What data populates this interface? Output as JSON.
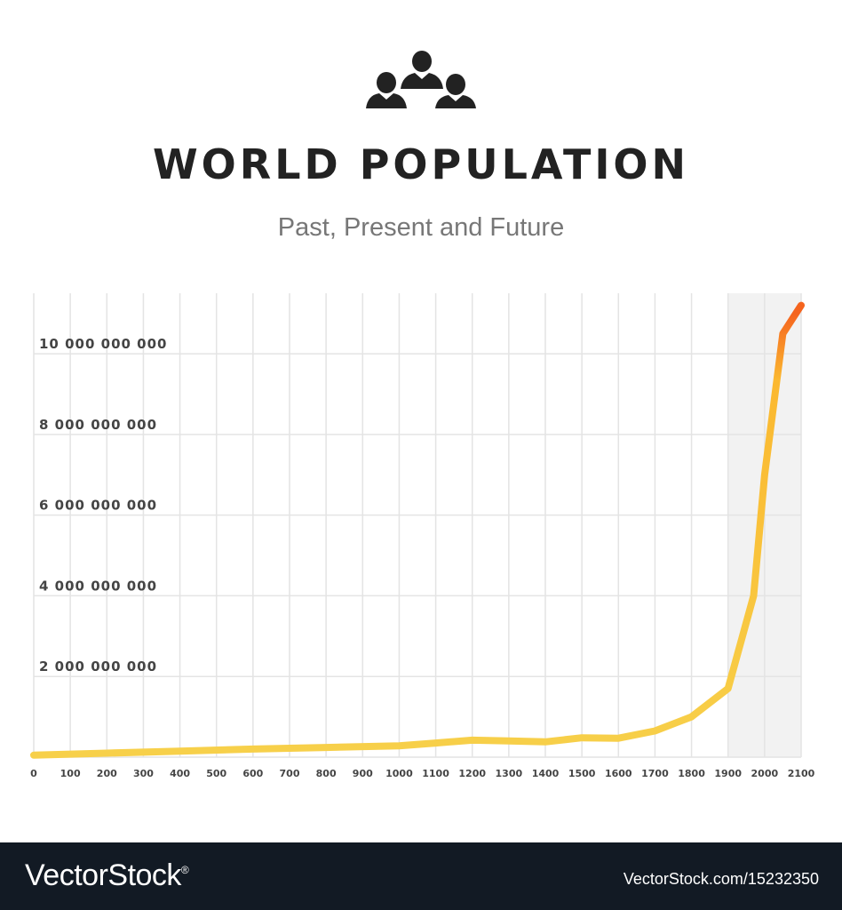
{
  "header": {
    "icon": "people-group-icon",
    "title": "WORLD POPULATION",
    "subtitle": "Past, Present and Future"
  },
  "colors": {
    "line_start": "#f7d04a",
    "line_mid": "#fbb830",
    "line_end": "#f5641e",
    "grid": "#e4e4e4",
    "forecast_band": "#f2f2f2",
    "text_dark": "#222222",
    "text_muted": "#777777",
    "axis_text": "#444444",
    "footer_bg": "#121a24"
  },
  "chart_data": {
    "type": "line",
    "title": "WORLD POPULATION",
    "subtitle": "Past, Present and Future",
    "xlabel": "",
    "ylabel": "",
    "x_ticks": [
      "0",
      "100",
      "200",
      "300",
      "400",
      "500",
      "600",
      "700",
      "800",
      "900",
      "1000",
      "1100",
      "1200",
      "1300",
      "1400",
      "1500",
      "1600",
      "1700",
      "1800",
      "1900",
      "2000",
      "2100"
    ],
    "y_ticks": [
      "2 000 000 000",
      "4 000 000 000",
      "6 000 000 000",
      "8 000 000 000",
      "10 000 000 000"
    ],
    "xlim": [
      0,
      2100
    ],
    "ylim": [
      0,
      11500000000
    ],
    "grid": true,
    "legend": "none",
    "forecast_shade": [
      1900,
      2100
    ],
    "series": [
      {
        "x": [
          0,
          200,
          400,
          600,
          800,
          1000,
          1100,
          1200,
          1300,
          1400,
          1500,
          1600,
          1700,
          1800,
          1900,
          1970,
          2000,
          2050,
          2100
        ],
        "y": [
          50000000,
          100000000,
          150000000,
          200000000,
          240000000,
          280000000,
          350000000,
          420000000,
          400000000,
          380000000,
          480000000,
          470000000,
          650000000,
          1000000000,
          1700000000,
          4000000000,
          7000000000,
          10500000000,
          11200000000
        ]
      }
    ]
  },
  "footer": {
    "brand": "VectorStock",
    "brand_mark": "®",
    "credit": "VectorStock.com/15232350"
  }
}
